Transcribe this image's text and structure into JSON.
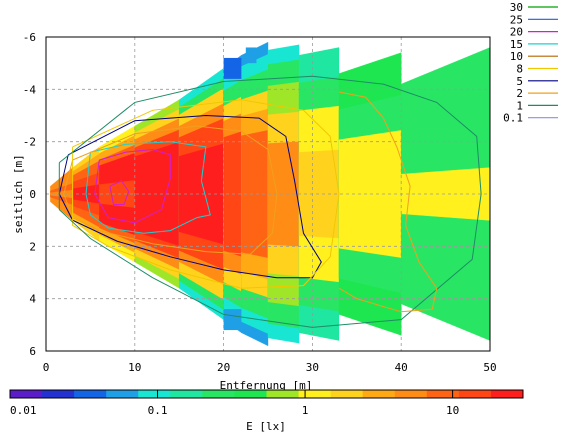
{
  "chart_data": {
    "type": "heatmap",
    "x_axis": {
      "label": "Entfernung [m]",
      "range": [
        0,
        50
      ],
      "ticks": [
        0,
        10,
        20,
        30,
        40,
        50
      ]
    },
    "y_axis": {
      "label": "seitlich [m]",
      "range": [
        -6,
        6
      ],
      "reversed": true,
      "ticks": [
        -6,
        -4,
        -2,
        0,
        2,
        4,
        6
      ]
    },
    "grid": true,
    "colorbar": {
      "label": "E [lx]",
      "scale": "log",
      "range": [
        0.01,
        30
      ],
      "ticks": [
        {
          "value": 0.01,
          "label": "0.01"
        },
        {
          "value": 0.1,
          "label": "0.1"
        },
        {
          "value": 1,
          "label": "1"
        },
        {
          "value": 10,
          "label": "10"
        }
      ],
      "colors": [
        "#5a1ec8",
        "#2332d0",
        "#1464e6",
        "#1fa0e6",
        "#19e6d2",
        "#1fe6a0",
        "#28e664",
        "#1ee650",
        "#a0e628",
        "#fff01e",
        "#ffd21e",
        "#ffaa14",
        "#ff8c14",
        "#ff6414",
        "#ff4614",
        "#ff1e1e"
      ]
    },
    "contour_legend": [
      {
        "level": "30",
        "color": "#00a000"
      },
      {
        "level": "25",
        "color": "#1a5fd6"
      },
      {
        "level": "20",
        "color": "#d21ed2"
      },
      {
        "level": "15",
        "color": "#1ad2d2"
      },
      {
        "level": "10",
        "color": "#b46400"
      },
      {
        "level": "8",
        "color": "#f0c800"
      },
      {
        "level": "5",
        "color": "#000080"
      },
      {
        "level": "2",
        "color": "#f0a01e"
      },
      {
        "level": "1",
        "color": "#1e8c64"
      },
      {
        "level": "0.1",
        "color": "#8c8cf0"
      }
    ],
    "bands": [
      {
        "x1": 0.5,
        "x2": 3,
        "w": [
          0.3,
          1.0
        ],
        "c": [
          [
            0.15,
            "#ff8c14"
          ],
          [
            0.4,
            "#ff6414"
          ],
          [
            1.0,
            "#ff8c14"
          ]
        ]
      },
      {
        "x1": 3,
        "x2": 6,
        "w": [
          1.0,
          1.8
        ],
        "c": [
          [
            0.2,
            "#ff1e1e"
          ],
          [
            0.45,
            "#ff4614"
          ],
          [
            0.7,
            "#ff6414"
          ],
          [
            0.85,
            "#ffaa14"
          ],
          [
            1.0,
            "#ffd21e"
          ]
        ]
      },
      {
        "x1": 6,
        "x2": 10,
        "w": [
          1.8,
          2.6
        ],
        "c": [
          [
            0.2,
            "#ff4614"
          ],
          [
            0.6,
            "#ff1e1e"
          ],
          [
            0.72,
            "#ff6414"
          ],
          [
            0.86,
            "#ffaa14"
          ],
          [
            1.0,
            "#fff01e"
          ]
        ]
      },
      {
        "x1": 10,
        "x2": 15,
        "w": [
          2.6,
          3.6
        ],
        "c": [
          [
            0.55,
            "#ff1e1e"
          ],
          [
            0.68,
            "#ff4614"
          ],
          [
            0.8,
            "#ff8c14"
          ],
          [
            0.9,
            "#ffd21e"
          ],
          [
            1.0,
            "#a0e628"
          ]
        ]
      },
      {
        "x1": 15,
        "x2": 20,
        "w": [
          3.6,
          4.8
        ],
        "c": [
          [
            0.4,
            "#ff1e1e"
          ],
          [
            0.6,
            "#ff4614"
          ],
          [
            0.72,
            "#ff8c14"
          ],
          [
            0.84,
            "#ffd21e"
          ],
          [
            0.92,
            "#28e664"
          ],
          [
            1.0,
            "#19e6d2"
          ]
        ]
      },
      {
        "x1": 20,
        "x2": 22,
        "w": [
          4.8,
          5.3
        ],
        "c": [
          [
            0.45,
            "#ff4614"
          ],
          [
            0.58,
            "#ff8c14"
          ],
          [
            0.7,
            "#ffd21e"
          ],
          [
            0.82,
            "#28e664"
          ],
          [
            0.92,
            "#19e6d2"
          ],
          [
            1.0,
            "#1fa0e6"
          ]
        ]
      },
      {
        "x1": 22,
        "x2": 25,
        "w": [
          5.3,
          5.8
        ],
        "c": [
          [
            0.42,
            "#ff6414"
          ],
          [
            0.56,
            "#ffaa14"
          ],
          [
            0.68,
            "#ffd21e"
          ],
          [
            0.82,
            "#28e664"
          ],
          [
            0.92,
            "#19e6d2"
          ],
          [
            1.0,
            "#1fa0e6"
          ]
        ]
      },
      {
        "x1": 25,
        "x2": 28.5,
        "w": [
          5.5,
          5.7
        ],
        "c": [
          [
            0.35,
            "#ff8c14"
          ],
          [
            0.55,
            "#ffd21e"
          ],
          [
            0.75,
            "#a0e628"
          ],
          [
            0.9,
            "#28e664"
          ],
          [
            1.0,
            "#19e6d2"
          ]
        ]
      },
      {
        "x1": 28.5,
        "x2": 33,
        "w": [
          5.3,
          5.6
        ],
        "c": [
          [
            0.3,
            "#ffd21e"
          ],
          [
            0.6,
            "#fff01e"
          ],
          [
            0.8,
            "#28e664"
          ],
          [
            1.0,
            "#1fe6a0"
          ]
        ]
      },
      {
        "x1": 33,
        "x2": 40,
        "w": [
          4.6,
          5.4
        ],
        "c": [
          [
            0.45,
            "#fff01e"
          ],
          [
            0.7,
            "#28e664"
          ],
          [
            1.0,
            "#1ee650"
          ]
        ]
      },
      {
        "x1": 40,
        "x2": 50,
        "w": [
          4.2,
          5.6
        ],
        "c": [
          [
            0.18,
            "#fff01e"
          ],
          [
            1.0,
            "#28e664"
          ]
        ]
      }
    ],
    "tips": [
      {
        "x": 20,
        "y": -5.2,
        "w": 2.0,
        "h": 0.8,
        "color": "#1464e6"
      },
      {
        "x": 22.5,
        "y": -5.6,
        "w": 1.2,
        "h": 0.6,
        "color": "#1fa0e6"
      },
      {
        "x": 20,
        "y": 5.2,
        "w": 2.0,
        "h": 0.8,
        "color": "#1fa0e6"
      }
    ],
    "contours": [
      {
        "color": "#d21ed2",
        "points": [
          [
            6,
            -1.3
          ],
          [
            9,
            -1.6
          ],
          [
            12,
            -1.7
          ],
          [
            14,
            -1.5
          ],
          [
            14,
            -0.6
          ],
          [
            13,
            0.6
          ],
          [
            10,
            1.1
          ],
          [
            7,
            0.9
          ],
          [
            5.5,
            0
          ],
          [
            6,
            -1.3
          ]
        ]
      },
      {
        "color": "#d21ed2",
        "points": [
          [
            7.2,
            -0.3
          ],
          [
            8.5,
            -0.5
          ],
          [
            9.3,
            -0.1
          ],
          [
            8.8,
            0.4
          ],
          [
            7.6,
            0.4
          ],
          [
            7.2,
            -0.3
          ]
        ]
      },
      {
        "color": "#1ad2d2",
        "points": [
          [
            5,
            -1.6
          ],
          [
            9,
            -1.9
          ],
          [
            14,
            -2.0
          ],
          [
            18,
            -1.8
          ],
          [
            17.5,
            -0.5
          ],
          [
            18.5,
            0.8
          ],
          [
            17,
            0.9
          ],
          [
            14,
            1.4
          ],
          [
            11,
            1.5
          ],
          [
            7,
            1.3
          ],
          [
            5,
            0.8
          ],
          [
            4.5,
            0
          ],
          [
            5,
            -1.6
          ]
        ]
      },
      {
        "color": "#f0a01e",
        "points": [
          [
            3,
            -1.3
          ],
          [
            10,
            -2.3
          ],
          [
            17,
            -2.6
          ],
          [
            22,
            -2.4
          ],
          [
            25,
            -1.7
          ],
          [
            26,
            0
          ],
          [
            25.5,
            1.5
          ],
          [
            23,
            2.3
          ],
          [
            18,
            2.2
          ],
          [
            12,
            1.9
          ],
          [
            6,
            1.4
          ],
          [
            3,
            0.9
          ],
          [
            2,
            0
          ],
          [
            3,
            -1.3
          ]
        ]
      },
      {
        "color": "#000080",
        "points": [
          [
            2.5,
            -1.5
          ],
          [
            10,
            -2.8
          ],
          [
            18,
            -3.0
          ],
          [
            24,
            -2.9
          ],
          [
            27,
            -2.2
          ],
          [
            28,
            -0.5
          ],
          [
            29,
            1.5
          ],
          [
            31,
            2.6
          ],
          [
            30,
            3.2
          ],
          [
            26,
            3.2
          ],
          [
            20,
            2.9
          ],
          [
            14,
            2.4
          ],
          [
            8,
            1.8
          ],
          [
            3,
            1.0
          ],
          [
            1.5,
            0
          ],
          [
            2.5,
            -1.5
          ]
        ]
      },
      {
        "color": "#f0c800",
        "points": [
          [
            3,
            -1.8
          ],
          [
            12,
            -3.2
          ],
          [
            22,
            -3.6
          ],
          [
            29,
            -3.2
          ],
          [
            32,
            -2.2
          ],
          [
            33,
            0
          ],
          [
            32,
            2.4
          ],
          [
            29,
            3.5
          ],
          [
            22,
            3.6
          ],
          [
            14,
            2.9
          ],
          [
            7,
            2.0
          ],
          [
            3,
            1.2
          ],
          [
            3,
            -1.8
          ]
        ]
      },
      {
        "color": "#1e8c64",
        "points": [
          [
            1.5,
            -1.2
          ],
          [
            10,
            -3.5
          ],
          [
            20,
            -4.3
          ],
          [
            30,
            -4.5
          ],
          [
            38,
            -4.2
          ],
          [
            44,
            -3.5
          ],
          [
            48.5,
            -2.2
          ],
          [
            49,
            0
          ],
          [
            48,
            2.5
          ],
          [
            40,
            4.8
          ],
          [
            30,
            5.1
          ],
          [
            20,
            4.6
          ],
          [
            12,
            3.2
          ],
          [
            5,
            1.7
          ],
          [
            1.5,
            0.6
          ],
          [
            1.5,
            -1.2
          ]
        ]
      },
      {
        "color": "#f0a01e",
        "points": [
          [
            33,
            -3.9
          ],
          [
            36,
            -3.7
          ],
          [
            38,
            -2.9
          ],
          [
            39.5,
            -1.8
          ],
          [
            41,
            -0.3
          ],
          [
            40.5,
            1.2
          ],
          [
            42,
            2.6
          ],
          [
            44,
            3.6
          ],
          [
            43.5,
            4.4
          ],
          [
            40,
            4.5
          ],
          [
            35,
            4.0
          ],
          [
            33,
            3.6
          ]
        ]
      }
    ]
  }
}
